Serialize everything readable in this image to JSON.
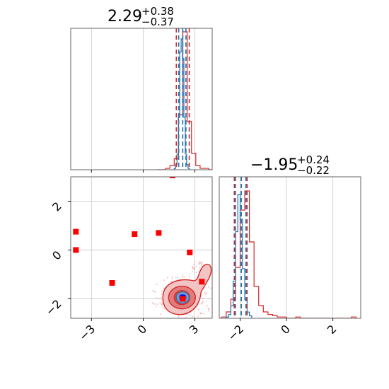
{
  "chart_data": {
    "type": "corner",
    "parameters": [
      {
        "index": 0,
        "median": 2.29,
        "plus": 0.38,
        "minus": 0.37,
        "title_main": "2.29",
        "title_sup": "+0.38",
        "title_sub": "−0.37",
        "xlim": [
          -4.2,
          4.0
        ],
        "ticks": [
          -3,
          0,
          3
        ],
        "tick_labels": [
          "−3",
          "0",
          "3"
        ],
        "dashed_lines": {
          "red": [
            1.92,
            2.29,
            2.67
          ],
          "blue": [
            2.06,
            2.29,
            2.48
          ]
        }
      },
      {
        "index": 1,
        "median": -1.95,
        "plus": 0.24,
        "minus": 0.22,
        "title_main": "−1.95",
        "title_sup": "+0.24",
        "title_sub": "−0.22",
        "xlim": [
          -2.9,
          3.2
        ],
        "ylim": [
          -2.8,
          3.0
        ],
        "ticks": [
          -2,
          0,
          2
        ],
        "tick_labels": [
          "−2",
          "0",
          "2"
        ],
        "dashed_lines": {
          "red": [
            -2.25,
            -1.95,
            -1.7
          ],
          "blue": [
            -2.2,
            -1.95,
            -1.75
          ]
        }
      }
    ],
    "histograms": {
      "param0_red": {
        "bin_start": 0.8,
        "bin_width": 0.25,
        "counts": [
          0,
          0,
          1,
          3,
          8,
          40,
          100,
          35,
          12,
          3,
          1,
          1,
          0,
          1
        ]
      },
      "param0_blue": {
        "bin_start": 1.8,
        "bin_width": 0.08,
        "counts": [
          1,
          4,
          12,
          40,
          90,
          100,
          85,
          40,
          12,
          4,
          1
        ]
      },
      "param1_red": {
        "bin_start": -2.8,
        "bin_width": 0.2,
        "counts": [
          1,
          5,
          15,
          40,
          85,
          100,
          60,
          25,
          10,
          5,
          3,
          2,
          1,
          1,
          0,
          0,
          1,
          0,
          0,
          0,
          0,
          0,
          0,
          0,
          0,
          0,
          0,
          0,
          1
        ]
      },
      "param1_blue": {
        "bin_start": -2.6,
        "bin_width": 0.1,
        "counts": [
          1,
          3,
          10,
          30,
          70,
          100,
          80,
          40,
          15,
          5,
          2
        ]
      }
    },
    "scatter_points": {
      "color": "#ff0000",
      "x": [
        -3.9,
        -3.9,
        -1.8,
        -0.5,
        0.9,
        2.7,
        3.4,
        2.3
      ],
      "y": [
        0.75,
        0.0,
        -1.35,
        0.65,
        0.7,
        -0.1,
        -1.3,
        -2.0
      ]
    },
    "contour_center": {
      "x": 2.29,
      "y": -1.95
    },
    "colors": {
      "red": "#d62728",
      "blue": "#1f77b4",
      "marker_red": "#ff0000",
      "marker_blue": "#0000ff",
      "grid": "#c8c8c8"
    },
    "grid": true
  }
}
